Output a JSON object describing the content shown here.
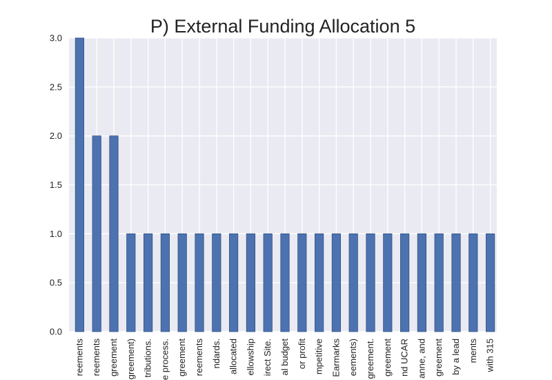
{
  "chart_data": {
    "type": "bar",
    "title": "P) External Funding Allocation 5",
    "xlabel": "",
    "ylabel": "",
    "ylim": [
      0,
      3.0
    ],
    "yticks": [
      "0.0",
      "0.5",
      "1.0",
      "1.5",
      "2.0",
      "2.5",
      "3.0"
    ],
    "grid": true,
    "legend": "none",
    "categories": [
      "reements",
      "reements",
      "greement",
      "greement)",
      "tributions.",
      "e process.",
      "greement",
      "reements",
      "ndards.",
      "allocated",
      "ellowship",
      "irect Site.",
      "al budget",
      "or profit",
      "mpetitive",
      "Earmarks",
      "eements)",
      "greement.",
      "greement",
      "nd UCAR",
      "anne, and",
      "greement",
      "by a lead",
      "ments",
      "with 315"
    ],
    "values": [
      3,
      2,
      2,
      1,
      1,
      1,
      1,
      1,
      1,
      1,
      1,
      1,
      1,
      1,
      1,
      1,
      1,
      1,
      1,
      1,
      1,
      1,
      1,
      1,
      1
    ],
    "colors": {
      "bar": "#4c72b0",
      "background": "#eaeaf2",
      "grid": "#ffffff"
    }
  }
}
